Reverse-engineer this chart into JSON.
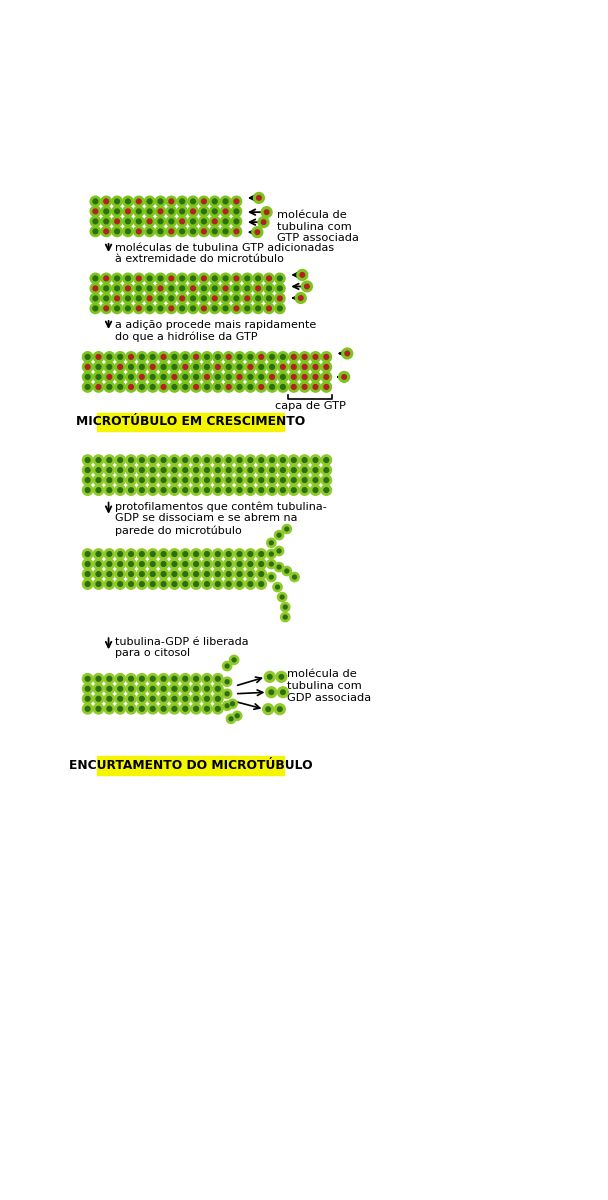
{
  "bg_color": "#ffffff",
  "label_yellow_bg": "#f5f500",
  "gtp_outer": "#7dc41e",
  "gtp_inner_red": "#b22222",
  "gtp_inner_dark": "#2d6e10",
  "gdp_outer": "#7dc41e",
  "gdp_inner_dark": "#2d6e10",
  "label1": "MICROTÚBULO EM CRESCIMENTO",
  "label2": "ENCURTAMENTO DO MICROTÚBULO",
  "ann1": "molécula de\ntubulina com\nGTP associada",
  "ann2": "moléculas de tubulina GTP adicionadas\nà extremidade do microtúbulo",
  "ann3": "a adição procede mais rapidamente\ndo que a hidrólise da GTP",
  "ann4": "capa de GTP",
  "ann5": "protofilamentos que contêm tubulina-\nGDP se dissociam e se abrem na\nparede do microtúbulo",
  "ann6": "tubulina-GDP é liberada\npara o citosol",
  "ann7": "molécula de\ntubulina com\nGDP associada"
}
